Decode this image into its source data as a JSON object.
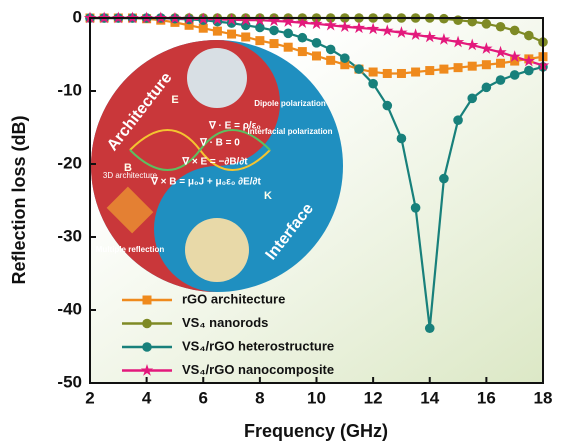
{
  "chart_data": {
    "type": "line",
    "x_label": "Frequency (GHz)",
    "y_label": "Reflection loss (dB)",
    "xlim": [
      2,
      18
    ],
    "xticks": [
      2,
      4,
      6,
      8,
      10,
      12,
      14,
      16,
      18
    ],
    "ylim": [
      -50,
      0
    ],
    "yticks": [
      -50,
      -40,
      -30,
      -20,
      -10,
      0
    ],
    "x": [
      2,
      2.5,
      3,
      3.5,
      4,
      4.5,
      5,
      5.5,
      6,
      6.5,
      7,
      7.5,
      8,
      8.5,
      9,
      9.5,
      10,
      10.5,
      11,
      11.5,
      12,
      12.5,
      13,
      13.5,
      14,
      14.5,
      15,
      15.5,
      16,
      16.5,
      17,
      17.5,
      18
    ],
    "series": [
      {
        "name": "rGO architecture",
        "color": "#ef8a1d",
        "marker": "square",
        "values": [
          0,
          0,
          0,
          0,
          -0.1,
          -0.3,
          -0.6,
          -1,
          -1.4,
          -1.8,
          -2.2,
          -2.6,
          -3.1,
          -3.5,
          -4,
          -4.6,
          -5.2,
          -5.8,
          -6.4,
          -7,
          -7.4,
          -7.6,
          -7.6,
          -7.4,
          -7.2,
          -7,
          -6.8,
          -6.6,
          -6.4,
          -6.2,
          -5.9,
          -5.6,
          -5.3
        ]
      },
      {
        "name": "VS₄ nanorods",
        "color": "#7e8a25",
        "marker": "circle",
        "values": [
          0,
          0,
          0,
          0,
          0,
          0,
          0,
          0,
          0,
          0,
          0,
          0,
          0,
          0,
          0,
          0,
          0,
          0,
          0,
          0,
          0,
          0,
          0,
          0,
          0,
          -0.1,
          -0.3,
          -0.5,
          -0.8,
          -1.2,
          -1.7,
          -2.4,
          -3.3
        ]
      },
      {
        "name": "VS₄/rGO heterostructure",
        "color": "#18807b",
        "marker": "circle",
        "values": [
          0,
          0,
          0,
          0,
          0,
          0,
          -0.1,
          -0.2,
          -0.3,
          -0.5,
          -0.7,
          -1,
          -1.3,
          -1.7,
          -2.1,
          -2.7,
          -3.4,
          -4.3,
          -5.5,
          -7,
          -9,
          -12,
          -16.5,
          -26,
          -42.5,
          -22,
          -14,
          -11,
          -9.5,
          -8.5,
          -7.8,
          -7.2,
          -6.7
        ]
      },
      {
        "name": "VS₄/rGO nanocomposite",
        "color": "#e3197c",
        "marker": "star",
        "values": [
          0,
          0,
          0,
          0,
          0,
          0,
          -0.05,
          -0.1,
          -0.15,
          -0.2,
          -0.25,
          -0.3,
          -0.3,
          -0.4,
          -0.5,
          -0.65,
          -0.8,
          -1,
          -1.2,
          -1.35,
          -1.5,
          -1.75,
          -2,
          -2.3,
          -2.6,
          -2.95,
          -3.3,
          -3.7,
          -4.2,
          -4.7,
          -5.3,
          -5.9,
          -6.5
        ]
      }
    ],
    "annotations": [
      "Architecture",
      "Interface",
      "Dipole polarization",
      "Interfacial polarization",
      "3D architecture",
      "Multiple reflection",
      "∇ · E = ρ/ε₀",
      "∇ · B = 0",
      "∇ × E = −∂B/∂t",
      "∇ × B = μ₀J + μ₀ε₀ ∂E/∂t",
      "E",
      "B",
      "K"
    ]
  }
}
